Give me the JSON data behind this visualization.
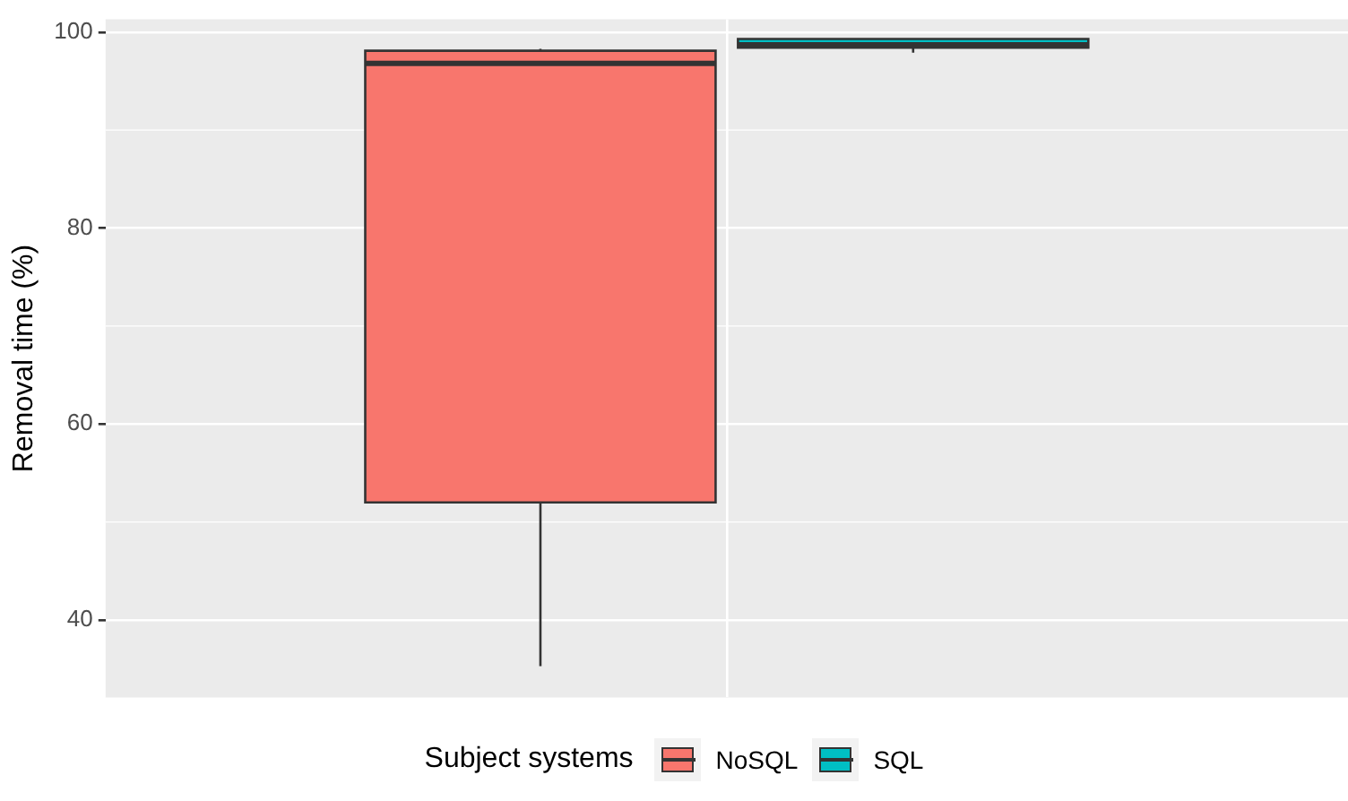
{
  "chart_data": {
    "type": "box",
    "ylabel": "Removal time (%)",
    "legend_title": "Subject systems",
    "categories": [
      null
    ],
    "series": [
      {
        "name": "NoSQL",
        "color": "#f8766d",
        "boxes": [
          {
            "low": 35.3,
            "q1": 52.0,
            "median": 96.8,
            "q3": 98.1,
            "high": 98.3
          }
        ]
      },
      {
        "name": "SQL",
        "color": "#00bfc4",
        "boxes": [
          {
            "low": 97.9,
            "q1": 98.4,
            "median": 98.7,
            "q3": 99.3,
            "high": 99.3
          }
        ]
      }
    ],
    "ylim": [
      32.1,
      101.3
    ],
    "yticks": [
      40,
      60,
      80,
      100
    ],
    "grid": true,
    "legend": "bottom",
    "tick_labels": "y"
  }
}
